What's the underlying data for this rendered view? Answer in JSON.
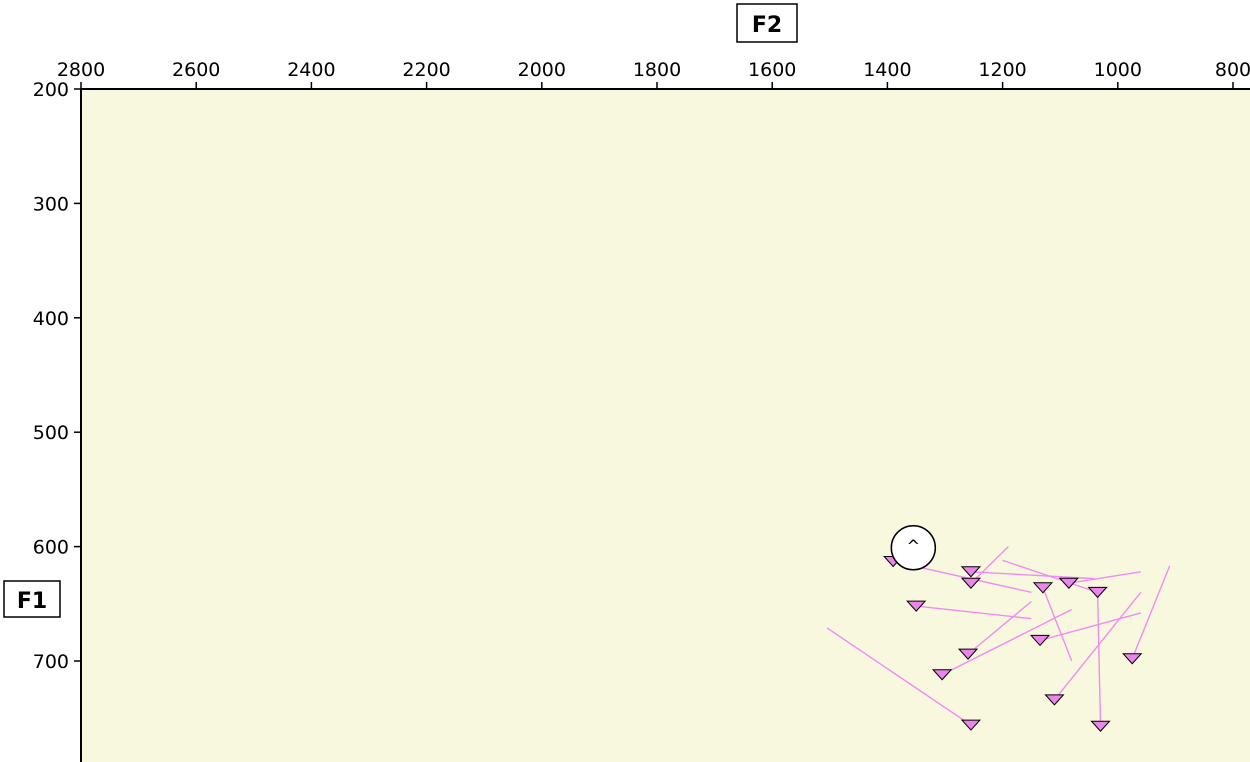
{
  "chart_data": {
    "type": "scatter",
    "title": "",
    "xlabel": "F2",
    "ylabel": "F1",
    "x_axis_position": "top",
    "x_reversed": true,
    "y_reversed": true,
    "xlim": [
      2800,
      800
    ],
    "ylim": [
      200,
      790
    ],
    "x_ticks": [
      2800,
      2600,
      2400,
      2200,
      2000,
      1800,
      1600,
      1400,
      1200,
      1000,
      800
    ],
    "y_ticks": [
      200,
      300,
      400,
      500,
      600,
      700
    ],
    "x_tick_labels": [
      "2800",
      "2600",
      "2400",
      "2200",
      "2000",
      "1800",
      "1600",
      "1400",
      "1200",
      "1000",
      "800"
    ],
    "y_tick_labels": [
      "200",
      "300",
      "400",
      "500",
      "600",
      "700"
    ],
    "grid": false,
    "legend": "none",
    "plot_background": "#f8f8df",
    "marker_color": "#ea86ea",
    "line_color": "#f08cf0",
    "marker_shape": "triangle-down",
    "series": [
      {
        "points": [
          {
            "x": 1390,
            "y": 613,
            "tail_x": 1150,
            "tail_y": 640
          },
          {
            "x": 1255,
            "y": 622,
            "tail_x": 1040,
            "tail_y": 628
          },
          {
            "x": 1255,
            "y": 632,
            "tail_x": 1190,
            "tail_y": 600
          },
          {
            "x": 1130,
            "y": 636,
            "tail_x": 1080,
            "tail_y": 700
          },
          {
            "x": 1085,
            "y": 632,
            "tail_x": 960,
            "tail_y": 622
          },
          {
            "x": 1035,
            "y": 640,
            "tail_x": 1200,
            "tail_y": 612
          },
          {
            "x": 1350,
            "y": 652,
            "tail_x": 1150,
            "tail_y": 663
          },
          {
            "x": 1135,
            "y": 682,
            "tail_x": 960,
            "tail_y": 658
          },
          {
            "x": 1260,
            "y": 694,
            "tail_x": 1150,
            "tail_y": 648
          },
          {
            "x": 1305,
            "y": 712,
            "tail_x": 1080,
            "tail_y": 655
          },
          {
            "x": 975,
            "y": 698,
            "tail_x": 910,
            "tail_y": 617
          },
          {
            "x": 1110,
            "y": 734,
            "tail_x": 960,
            "tail_y": 640
          },
          {
            "x": 1030,
            "y": 757,
            "tail_x": 1035,
            "tail_y": 643
          },
          {
            "x": 1255,
            "y": 756,
            "tail_x": 1505,
            "tail_y": 671
          }
        ]
      }
    ],
    "annotations": [
      {
        "type": "circle-marker",
        "x": 1355,
        "y": 601,
        "symbol": "^"
      }
    ]
  }
}
